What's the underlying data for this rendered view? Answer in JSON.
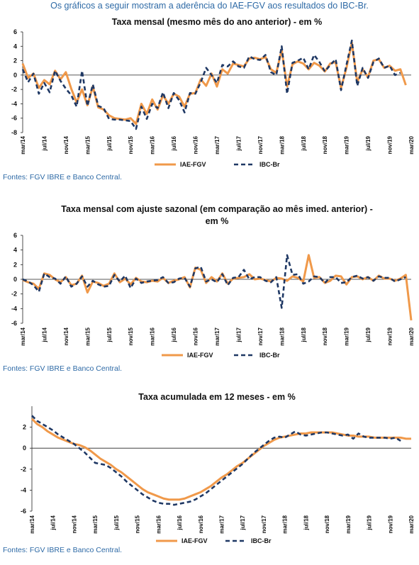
{
  "intro": "Os gráficos a seguir mostram a aderência do IAE-FGV aos resultados do IBC-Br.",
  "colors": {
    "iae": "#f0994a",
    "ibc": "#1f3864",
    "text": "#2e6aa6"
  },
  "chart_data": [
    {
      "type": "line",
      "title": [
        "Taxa mensal (mesmo mês do ano anterior) - em %"
      ],
      "source": "Fontes: FGV IBRE e Banco Central.",
      "ylim": [
        -8,
        6
      ],
      "yticks": [
        -8,
        -6,
        -4,
        -2,
        0,
        2,
        4,
        6
      ],
      "x_ticks": [
        {
          "i": 0,
          "label": "mar/14"
        },
        {
          "i": 4,
          "label": "jul/14"
        },
        {
          "i": 8,
          "label": "nov/14"
        },
        {
          "i": 12,
          "label": "mar/15"
        },
        {
          "i": 16,
          "label": "jul/15"
        },
        {
          "i": 20,
          "label": "nov/15"
        },
        {
          "i": 24,
          "label": "mar/16"
        },
        {
          "i": 28,
          "label": "jul/16"
        },
        {
          "i": 32,
          "label": "nov/16"
        },
        {
          "i": 36,
          "label": "mar/17"
        },
        {
          "i": 40,
          "label": "jul/17"
        },
        {
          "i": 44,
          "label": "nov/17"
        },
        {
          "i": 48,
          "label": "mar/18"
        },
        {
          "i": 52,
          "label": "jul/18"
        },
        {
          "i": 56,
          "label": "nov/18"
        },
        {
          "i": 60,
          "label": "mar/19"
        },
        {
          "i": 64,
          "label": "jul/19"
        },
        {
          "i": 68,
          "label": "nov/19"
        },
        {
          "i": 72,
          "label": "mar/20"
        }
      ],
      "legend": "bottom",
      "series": [
        {
          "name": "IAE-FGV",
          "values": [
            1.6,
            -0.4,
            0.2,
            -1.8,
            -0.7,
            -1.3,
            0.6,
            -0.6,
            0.4,
            -1.9,
            -3.8,
            -2.0,
            -4.2,
            -1.6,
            -4.5,
            -4.8,
            -5.6,
            -6.0,
            -6.1,
            -6.2,
            -6.0,
            -6.8,
            -4.0,
            -5.4,
            -3.4,
            -4.8,
            -2.8,
            -4.0,
            -2.6,
            -3.0,
            -4.4,
            -2.6,
            -2.5,
            -0.6,
            -1.5,
            0.2,
            -1.6,
            0.8,
            0.2,
            1.6,
            1.4,
            1.2,
            2.3,
            2.4,
            2.2,
            2.5,
            0.8,
            0.3,
            3.5,
            -1.6,
            1.5,
            1.9,
            1.6,
            0.8,
            1.7,
            1.3,
            0.5,
            1.6,
            1.8,
            -1.8,
            1.0,
            4.5,
            -1.0,
            0.8,
            -0.3,
            2.0,
            2.2,
            1.0,
            1.3,
            0.6,
            0.8,
            -1.4
          ]
        },
        {
          "name": "IBC-Br",
          "values": [
            0.8,
            -1.0,
            0.2,
            -2.6,
            -1.1,
            -2.4,
            0.6,
            -0.8,
            -1.9,
            -2.8,
            -4.4,
            0.6,
            -4.3,
            -1.3,
            -4.3,
            -4.6,
            -6.1,
            -6.2,
            -6.2,
            -6.3,
            -6.4,
            -7.5,
            -4.4,
            -6.1,
            -4.0,
            -4.6,
            -2.4,
            -4.6,
            -2.5,
            -3.5,
            -5.2,
            -2.5,
            -2.6,
            -1.0,
            1.0,
            0.0,
            -1.1,
            1.4,
            1.2,
            1.9,
            1.2,
            1.0,
            2.6,
            2.2,
            2.1,
            2.8,
            0.4,
            0.0,
            4.0,
            -2.6,
            1.7,
            2.0,
            2.4,
            0.8,
            2.8,
            1.8,
            0.5,
            1.4,
            2.2,
            -2.1,
            1.4,
            4.8,
            -1.5,
            1.0,
            -0.4,
            1.8,
            2.3,
            1.0,
            1.3,
            0.0,
            0.3
          ]
        }
      ]
    },
    {
      "type": "line",
      "title": [
        "Taxa mensal com ajuste sazonal (em comparação ao mês imed. anterior) -",
        "em %"
      ],
      "source": "Fontes: FGV IBRE e Banco Central.",
      "ylim": [
        -6,
        6
      ],
      "yticks": [
        -6,
        -4,
        -2,
        0,
        2,
        4,
        6
      ],
      "x_ticks": [
        {
          "i": 0,
          "label": "mar/14"
        },
        {
          "i": 4,
          "label": "jul/14"
        },
        {
          "i": 8,
          "label": "nov/14"
        },
        {
          "i": 12,
          "label": "mar/15"
        },
        {
          "i": 16,
          "label": "jul/15"
        },
        {
          "i": 20,
          "label": "nov/15"
        },
        {
          "i": 24,
          "label": "mar/16"
        },
        {
          "i": 28,
          "label": "jul/16"
        },
        {
          "i": 32,
          "label": "nov/16"
        },
        {
          "i": 36,
          "label": "mar/17"
        },
        {
          "i": 40,
          "label": "jul/17"
        },
        {
          "i": 44,
          "label": "nov/17"
        },
        {
          "i": 48,
          "label": "mar/18"
        },
        {
          "i": 52,
          "label": "jul/18"
        },
        {
          "i": 56,
          "label": "nov/18"
        },
        {
          "i": 60,
          "label": "mar/19"
        },
        {
          "i": 64,
          "label": "jul/19"
        },
        {
          "i": 68,
          "label": "nov/19"
        },
        {
          "i": 72,
          "label": "mar/20"
        }
      ],
      "legend": "bottom",
      "series": [
        {
          "name": "IAE-FGV",
          "values": [
            -0.1,
            -0.4,
            -0.6,
            -1.3,
            0.8,
            0.6,
            0.0,
            -0.4,
            0.3,
            -0.8,
            -0.6,
            0.5,
            -1.8,
            -0.3,
            -0.5,
            -0.9,
            -0.6,
            0.8,
            -0.4,
            0.1,
            -0.7,
            0.2,
            -0.3,
            -0.4,
            -0.2,
            -0.3,
            0.2,
            -0.5,
            -0.2,
            0.0,
            0.3,
            -1.1,
            1.6,
            1.3,
            -0.5,
            0.3,
            -0.3,
            0.8,
            -0.6,
            0.1,
            0.2,
            0.3,
            0.7,
            0.0,
            0.1,
            -0.1,
            -0.3,
            0.2,
            0.1,
            -0.2,
            0.4,
            0.2,
            -0.3,
            3.3,
            0.2,
            0.3,
            -0.5,
            -0.2,
            0.5,
            0.4,
            -0.7,
            0.3,
            0.4,
            0.0,
            0.3,
            -0.2,
            0.5,
            0.1,
            0.1,
            -0.2,
            0.1,
            0.6,
            -5.6
          ]
        },
        {
          "name": "IBC-Br",
          "values": [
            0.0,
            -0.3,
            -0.8,
            -1.7,
            0.8,
            0.3,
            0.1,
            -0.6,
            0.4,
            -1.0,
            -0.6,
            0.4,
            -1.0,
            -0.2,
            -0.7,
            -1.0,
            -0.9,
            0.6,
            -0.3,
            0.5,
            -1.2,
            0.1,
            -0.5,
            -0.3,
            -0.2,
            -0.1,
            0.3,
            -0.5,
            -0.4,
            0.1,
            0.2,
            -1.0,
            1.5,
            1.7,
            -0.3,
            0.0,
            -0.4,
            0.7,
            -0.8,
            0.2,
            0.3,
            1.3,
            0.0,
            0.3,
            0.3,
            -0.2,
            -0.4,
            0.3,
            -3.9,
            3.3,
            0.6,
            0.7,
            -0.6,
            -0.3,
            0.4,
            0.3,
            -0.5,
            0.3,
            0.3,
            -0.5,
            -0.4,
            0.3,
            0.5,
            0.1,
            0.3,
            -0.2,
            0.4,
            0.2,
            0.2,
            -0.3,
            0.0,
            0.3
          ]
        }
      ]
    },
    {
      "type": "line",
      "title": [
        "Taxa acumulada em 12 meses - em %"
      ],
      "source": "Fontes: FGV IBRE e Banco Central.",
      "ylim": [
        -6,
        4
      ],
      "yticks": [
        -6,
        -4,
        -2,
        0,
        2
      ],
      "x_ticks": [
        {
          "i": 0,
          "label": "mar/14"
        },
        {
          "i": 4,
          "label": "jul/14"
        },
        {
          "i": 8,
          "label": "nov/14"
        },
        {
          "i": 12,
          "label": "mar/15"
        },
        {
          "i": 16,
          "label": "jul/15"
        },
        {
          "i": 20,
          "label": "nov/15"
        },
        {
          "i": 24,
          "label": "mar/16"
        },
        {
          "i": 28,
          "label": "jul/16"
        },
        {
          "i": 32,
          "label": "nov/16"
        },
        {
          "i": 36,
          "label": "mar/17"
        },
        {
          "i": 40,
          "label": "jul/17"
        },
        {
          "i": 44,
          "label": "nov/17"
        },
        {
          "i": 48,
          "label": "mar/18"
        },
        {
          "i": 52,
          "label": "jul/18"
        },
        {
          "i": 56,
          "label": "nov/18"
        },
        {
          "i": 60,
          "label": "mar/19"
        },
        {
          "i": 64,
          "label": "jul/19"
        },
        {
          "i": 68,
          "label": "nov/19"
        },
        {
          "i": 72,
          "label": "mar/20"
        }
      ],
      "legend": "bottom",
      "series": [
        {
          "name": "IAE-FGV",
          "values": [
            2.8,
            2.3,
            2.0,
            1.6,
            1.3,
            1.0,
            0.8,
            0.6,
            0.4,
            0.3,
            0.1,
            -0.2,
            -0.6,
            -1.0,
            -1.3,
            -1.6,
            -2.0,
            -2.3,
            -2.7,
            -3.1,
            -3.5,
            -3.9,
            -4.2,
            -4.4,
            -4.6,
            -4.8,
            -4.9,
            -4.9,
            -4.9,
            -4.8,
            -4.6,
            -4.4,
            -4.2,
            -3.9,
            -3.6,
            -3.2,
            -2.8,
            -2.5,
            -2.1,
            -1.7,
            -1.4,
            -1.0,
            -0.6,
            -0.2,
            0.2,
            0.5,
            0.8,
            1.0,
            1.1,
            1.2,
            1.3,
            1.4,
            1.4,
            1.5,
            1.5,
            1.5,
            1.5,
            1.5,
            1.4,
            1.3,
            1.2,
            1.2,
            1.1,
            1.1,
            1.1,
            1.0,
            1.0,
            1.0,
            1.0,
            1.0,
            1.0,
            0.9,
            0.9
          ]
        },
        {
          "name": "IBC-Br",
          "values": [
            3.1,
            2.6,
            2.3,
            2.0,
            1.7,
            1.3,
            1.0,
            0.7,
            0.4,
            0.0,
            -0.4,
            -0.9,
            -1.4,
            -1.5,
            -1.6,
            -1.9,
            -2.3,
            -2.7,
            -3.2,
            -3.6,
            -4.0,
            -4.4,
            -4.7,
            -5.0,
            -5.2,
            -5.3,
            -5.3,
            -5.4,
            -5.3,
            -5.2,
            -5.1,
            -4.9,
            -4.6,
            -4.3,
            -3.9,
            -3.5,
            -3.1,
            -2.7,
            -2.3,
            -1.9,
            -1.5,
            -1.0,
            -0.5,
            -0.1,
            0.3,
            0.7,
            1.0,
            1.1,
            1.0,
            1.3,
            1.6,
            1.3,
            1.2,
            1.3,
            1.4,
            1.5,
            1.5,
            1.4,
            1.3,
            1.2,
            1.3,
            0.9,
            1.4,
            1.1,
            1.0,
            1.0,
            1.0,
            1.0,
            0.9,
            1.0,
            0.7
          ]
        }
      ]
    }
  ]
}
